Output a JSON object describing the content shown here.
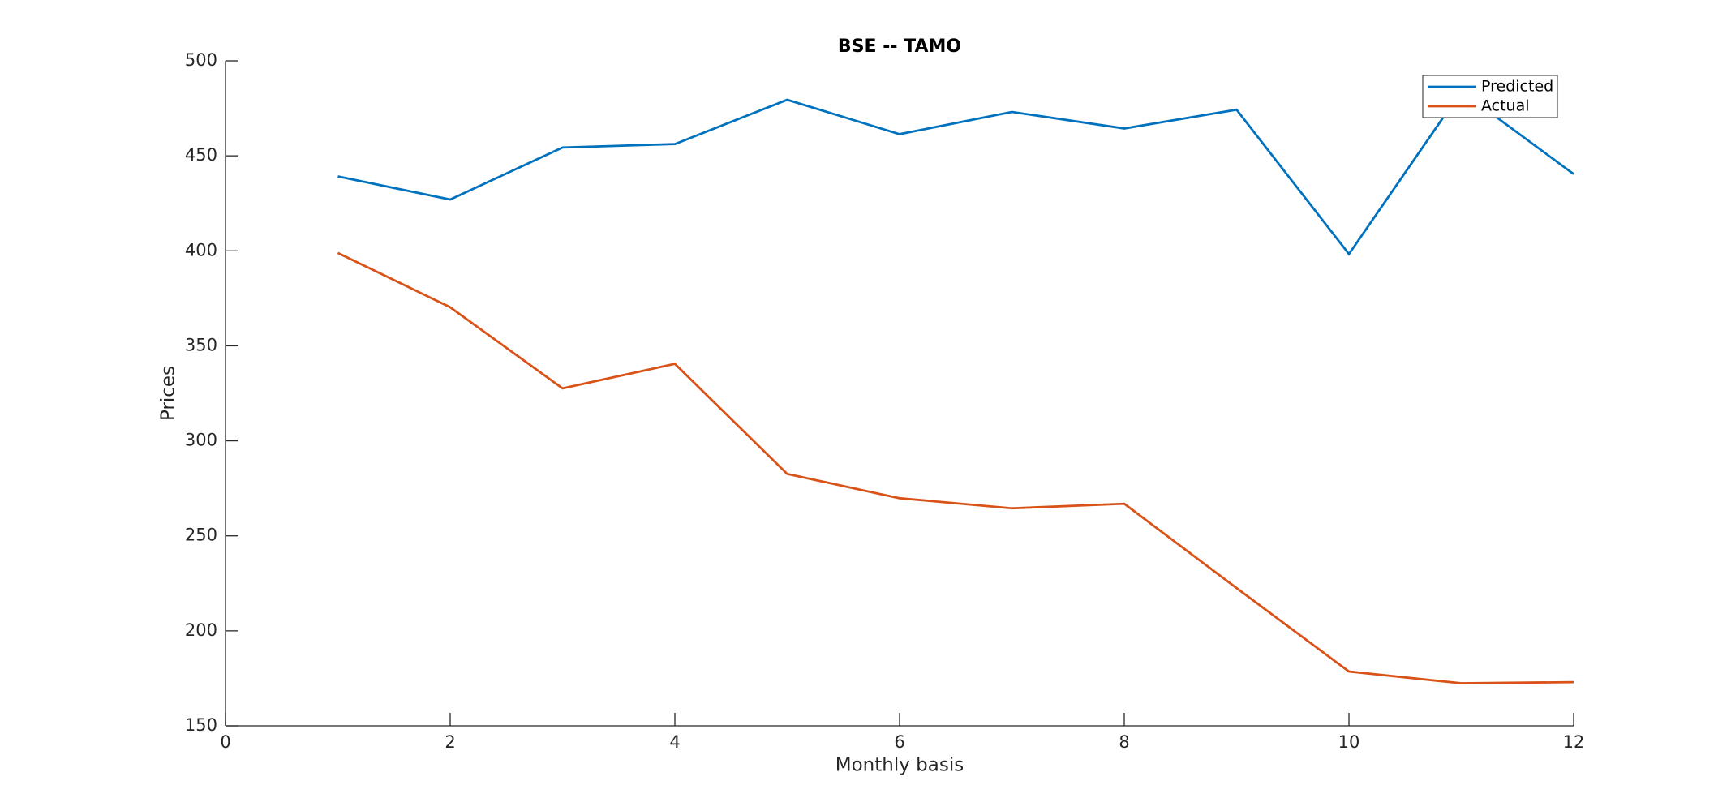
{
  "chart_data": {
    "type": "line",
    "title": "BSE -- TAMO",
    "xlabel": "Monthly basis",
    "ylabel": "Prices",
    "x": [
      1,
      2,
      3,
      4,
      5,
      6,
      7,
      8,
      9,
      10,
      11,
      12
    ],
    "series": [
      {
        "name": "Predicted",
        "color": "#0072bd",
        "values": [
          439.2,
          427,
          454.4,
          456.2,
          479.5,
          461.4,
          473.1,
          464.4,
          474.3,
          398.3,
          484,
          440.4
        ]
      },
      {
        "name": "Actual",
        "color": "#d95319",
        "values": [
          398.9,
          370.3,
          327.6,
          340.5,
          282.6,
          269.8,
          264.5,
          266.9,
          222.5,
          178.6,
          172.4,
          173
        ]
      }
    ],
    "xlim": [
      0,
      12
    ],
    "xticks": [
      0,
      2,
      4,
      6,
      8,
      10,
      12
    ],
    "ylim": [
      150,
      500
    ],
    "yticks": [
      150,
      200,
      250,
      300,
      350,
      400,
      450,
      500
    ],
    "legend": "northeast",
    "grid": false
  }
}
